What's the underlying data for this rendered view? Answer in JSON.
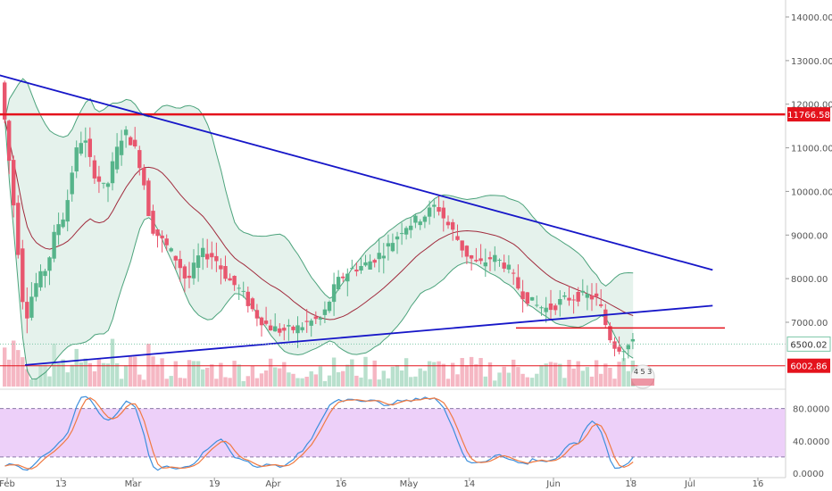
{
  "chart_data": {
    "type": "candlestick",
    "price_axis": {
      "ticks": [
        6000,
        7000,
        8000,
        9000,
        10000,
        11000,
        12000,
        13000,
        14000
      ],
      "tick_labels": [
        "7000.00",
        "8000.00",
        "9000.00",
        "10000.00",
        "11000.00",
        "12000.00",
        "13000.00",
        "14000.00"
      ],
      "ylim": [
        5550,
        14500
      ],
      "scale": "linear"
    },
    "time_axis": {
      "labels": [
        "Feb",
        "13",
        "Mar",
        "19",
        "Apr",
        "16",
        "May",
        "14",
        "Jun",
        "18",
        "Jul",
        "16"
      ]
    },
    "price_badges": [
      {
        "label": "11766.58",
        "value": 11766.58,
        "color": "#e4121c",
        "style": "filled"
      },
      {
        "label": "6500.02",
        "value": 6500.02,
        "color": "#7cc6a8",
        "style": "outline"
      },
      {
        "label": "6002.86",
        "value": 6002.86,
        "color": "#e4121c",
        "style": "filled"
      }
    ],
    "horizontal_lines": [
      {
        "value": 11766.58,
        "color": "#e4121c",
        "extent": "full"
      },
      {
        "value": 6870,
        "color": "#e4121c",
        "extent": "partial"
      },
      {
        "value": 6002.86,
        "color": "#e4121c",
        "extent": "full-thin"
      }
    ],
    "trendlines": [
      {
        "name": "descending",
        "color": "#1616c8",
        "start": {
          "date": "Jan 29",
          "price": 12700
        },
        "end": {
          "date": "Jul 06",
          "price": 8200
        }
      },
      {
        "name": "ascending",
        "color": "#1616c8",
        "start": {
          "date": "Feb 05",
          "price": 6020
        },
        "end": {
          "date": "Jul 06",
          "price": 7380
        }
      }
    ],
    "candles": [],
    "oscillator": {
      "type": "stochastic",
      "ticks": [
        0,
        40,
        80
      ],
      "tick_labels": [
        "0.0000",
        "40.0000",
        "80.0000"
      ],
      "band": [
        20,
        80
      ],
      "band_color": "#e8c4f8",
      "k_color": "#3d8fdc",
      "d_color": "#f07a42"
    },
    "overlay_badge": {
      "label": "4 5 3"
    },
    "colors": {
      "up": "#56b48a",
      "down": "#e8566e",
      "bollinger": "#4ca37c",
      "bollinger_fill": "#cfe8dc",
      "basis": "#a02a3c"
    },
    "grid": false
  }
}
